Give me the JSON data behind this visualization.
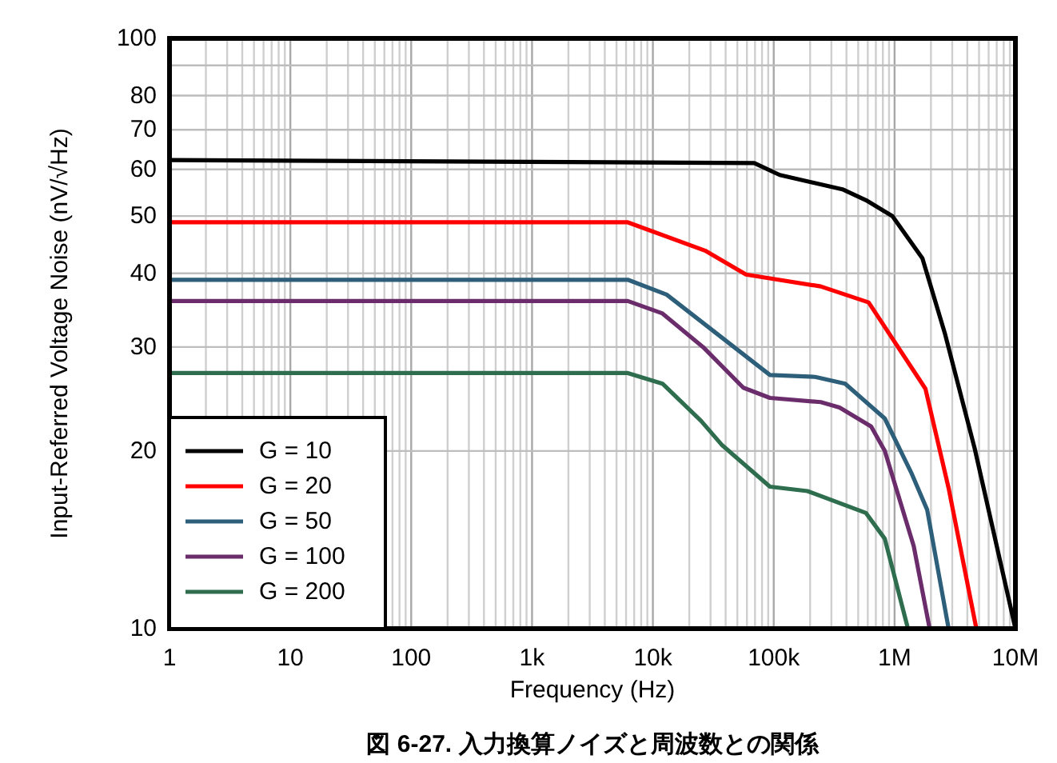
{
  "chart_data": {
    "type": "line",
    "xlabel": "Frequency (Hz)",
    "ylabel": "Input-Referred Voltage Noise (nV/√Hz)",
    "annotations": [
      "図 6-27. 入力換算ノイズと周波数との関係"
    ],
    "log": "xy",
    "xlim": [
      1,
      10000000
    ],
    "ylim": [
      10,
      100
    ],
    "xticks": [
      1,
      10,
      100,
      {
        "value": 1000,
        "label": "1k"
      },
      {
        "value": 10000,
        "label": "10k"
      },
      {
        "value": 100000,
        "label": "100k"
      },
      {
        "value": 1000000,
        "label": "1M"
      },
      {
        "value": 10000000,
        "label": "10M"
      }
    ],
    "yticks": [
      10,
      20,
      30,
      40,
      50,
      60,
      70,
      80,
      {
        "value": 90,
        "label": null
      },
      100
    ],
    "grid": true,
    "legend": "bottom left",
    "series": [
      {
        "name": "G = 10",
        "color": "#000000",
        "x": [
          1,
          69000,
          112000,
          370000,
          580000,
          960000,
          1700000,
          2600000,
          4600000,
          10000000
        ],
        "values": [
          62.2,
          61.5,
          58.7,
          55.5,
          53.2,
          50,
          42.4,
          31.7,
          20.2,
          10
        ]
      },
      {
        "name": "G = 20",
        "color": "#ff0000",
        "x": [
          1,
          6200,
          27000,
          59000,
          245000,
          610000,
          1800000,
          2800000,
          4750000
        ],
        "values": [
          48.8,
          48.8,
          43.7,
          39.8,
          38,
          35.7,
          25.5,
          17.3,
          10
        ]
      },
      {
        "name": "G = 50",
        "color": "#2e5f7a",
        "x": [
          1,
          6200,
          13000,
          93000,
          220000,
          390000,
          830000,
          1370000,
          1860000,
          2800000
        ],
        "values": [
          39,
          39,
          36.8,
          26.9,
          26.7,
          26,
          22.7,
          18.4,
          15.9,
          10
        ]
      },
      {
        "name": "G = 100",
        "color": "#6b2c6b",
        "x": [
          1,
          6200,
          12000,
          26000,
          56000,
          93000,
          245000,
          350000,
          640000,
          830000,
          1440000,
          1950000
        ],
        "values": [
          35.9,
          35.9,
          34.2,
          30,
          25.6,
          24.6,
          24.2,
          23.7,
          22,
          20,
          13.8,
          10
        ]
      },
      {
        "name": "G = 200",
        "color": "#2e6e4e",
        "x": [
          1,
          6200,
          12000,
          25000,
          37000,
          93000,
          190000,
          580000,
          830000,
          1290000
        ],
        "values": [
          27.1,
          27.1,
          26,
          22.5,
          20.5,
          17.4,
          17.1,
          15.7,
          14.2,
          10
        ]
      }
    ]
  }
}
